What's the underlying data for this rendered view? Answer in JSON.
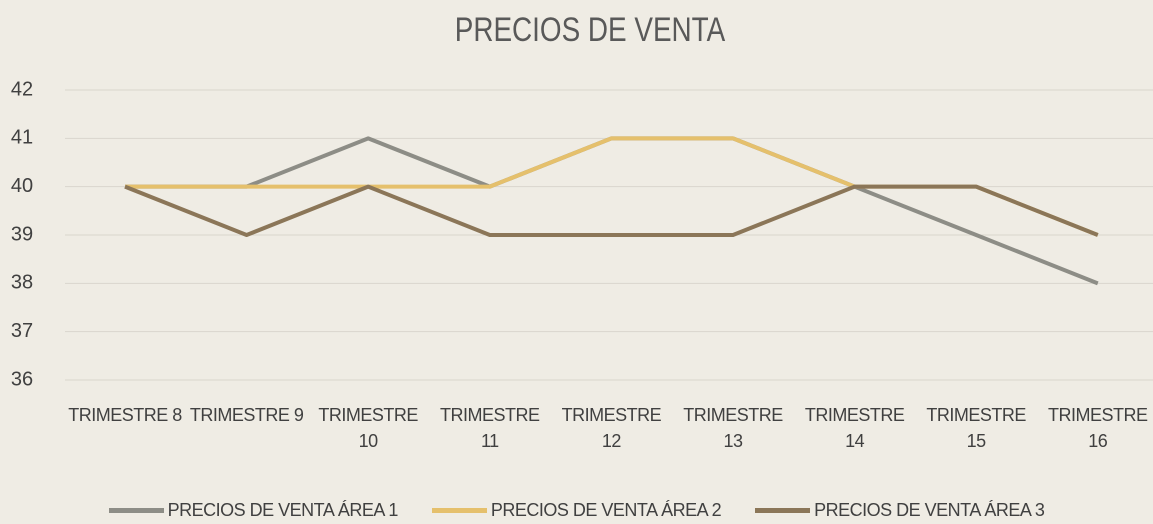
{
  "chart_data": {
    "type": "line",
    "title": "PRECIOS DE VENTA",
    "categories": [
      "TRIMESTRE 8",
      "TRIMESTRE 9",
      "TRIMESTRE 10",
      "TRIMESTRE 11",
      "TRIMESTRE 12",
      "TRIMESTRE 13",
      "TRIMESTRE 14",
      "TRIMESTRE 15",
      "TRIMESTRE 16"
    ],
    "series": [
      {
        "name": "PRECIOS DE VENTA ÁREA 1",
        "color": "#8d8d86",
        "values": [
          40,
          40,
          41,
          40,
          41,
          41,
          40,
          39,
          38
        ]
      },
      {
        "name": "PRECIOS DE VENTA ÁREA 2",
        "color": "#e5c06c",
        "values": [
          40,
          40,
          40,
          40,
          41,
          41,
          40,
          40,
          39
        ]
      },
      {
        "name": "PRECIOS DE VENTA ÁREA 3",
        "color": "#8b7658",
        "values": [
          40,
          39,
          40,
          39,
          39,
          39,
          40,
          40,
          39
        ]
      }
    ],
    "ylim": [
      36,
      42
    ],
    "yticks": [
      36,
      37,
      38,
      39,
      40,
      41,
      42
    ],
    "grid": true,
    "legend": "bottom"
  }
}
